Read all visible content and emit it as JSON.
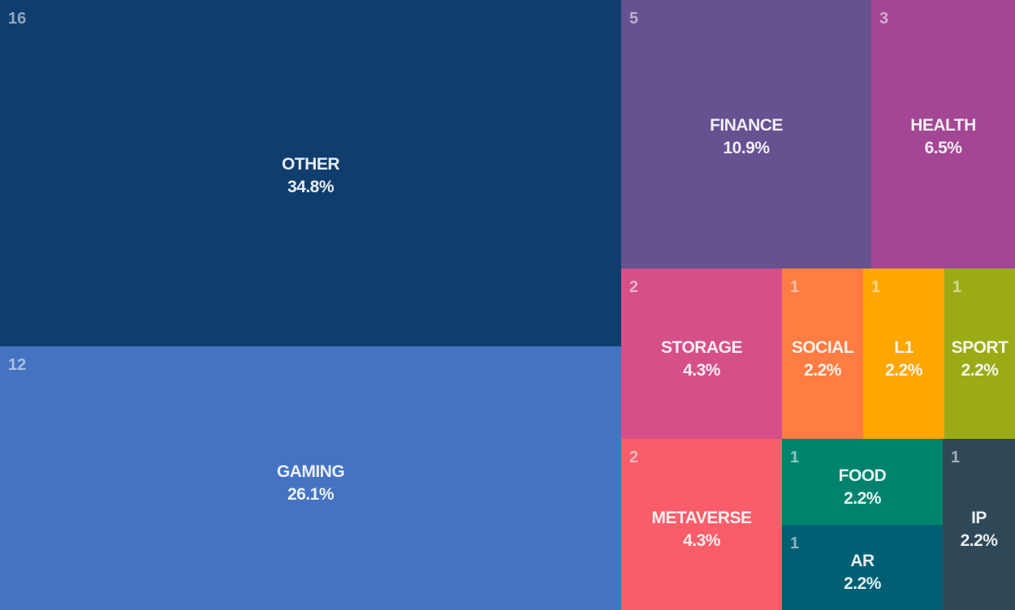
{
  "chart_data": {
    "type": "treemap",
    "items": [
      {
        "name": "OTHER",
        "count": 16,
        "percent": "34.8%",
        "color": "#0f3e6e"
      },
      {
        "name": "GAMING",
        "count": 12,
        "percent": "26.1%",
        "color": "#4473c2"
      },
      {
        "name": "FINANCE",
        "count": 5,
        "percent": "10.9%",
        "color": "#665191"
      },
      {
        "name": "HEALTH",
        "count": 3,
        "percent": "6.5%",
        "color": "#a34694"
      },
      {
        "name": "STORAGE",
        "count": 2,
        "percent": "4.3%",
        "color": "#d45087"
      },
      {
        "name": "METAVERSE",
        "count": 2,
        "percent": "4.3%",
        "color": "#f95d6a"
      },
      {
        "name": "SOCIAL",
        "count": 1,
        "percent": "2.2%",
        "color": "#ff7c43"
      },
      {
        "name": "L1",
        "count": 1,
        "percent": "2.2%",
        "color": "#ffa600"
      },
      {
        "name": "SPORT",
        "count": 1,
        "percent": "2.2%",
        "color": "#9bab16"
      },
      {
        "name": "FOOD",
        "count": 1,
        "percent": "2.2%",
        "color": "#00836e"
      },
      {
        "name": "AR",
        "count": 1,
        "percent": "2.2%",
        "color": "#005f73"
      },
      {
        "name": "IP",
        "count": 1,
        "percent": "2.2%",
        "color": "#2f4858"
      }
    ]
  }
}
